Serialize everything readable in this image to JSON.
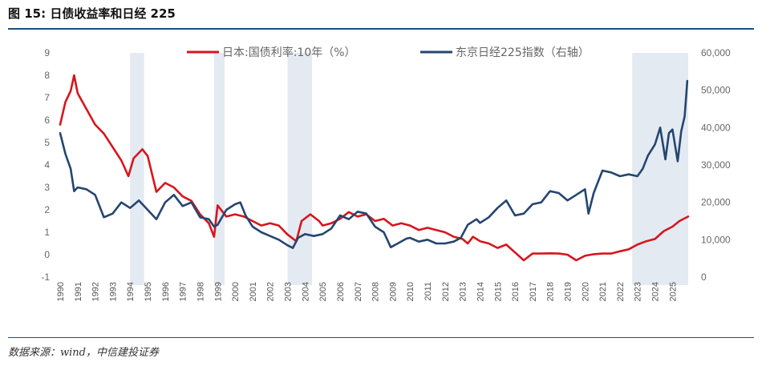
{
  "header": {
    "title": "图 15:  日债收益率和日经 225"
  },
  "footer": {
    "source": "数据来源：wind，中信建投证券"
  },
  "colors": {
    "jgb": "#d7151c",
    "nikkei": "#24466f",
    "band": "#e4eaf2",
    "rule": "#1f4e79"
  },
  "chart_data": {
    "type": "line",
    "title": "日债收益率和日经 225",
    "x_range": [
      1990,
      2025.9
    ],
    "x_ticks": [
      1990,
      1991,
      1992,
      1993,
      1994,
      1995,
      1996,
      1997,
      1998,
      1999,
      2000,
      2001,
      2002,
      2003,
      2004,
      2005,
      2006,
      2007,
      2008,
      2009,
      2010,
      2011,
      2012,
      2013,
      2014,
      2015,
      2016,
      2017,
      2018,
      2019,
      2020,
      2021,
      2022,
      2023,
      2024,
      2025
    ],
    "y_left": {
      "label": "%",
      "min": -1,
      "max": 9,
      "ticks": [
        -1,
        0,
        1,
        2,
        3,
        4,
        5,
        6,
        7,
        8,
        9
      ]
    },
    "y_right": {
      "min": 0,
      "max": 60000,
      "ticks": [
        0,
        10000,
        20000,
        30000,
        40000,
        50000,
        60000
      ],
      "tick_labels": [
        "0",
        "10,000",
        "20,000",
        "30,000",
        "40,000",
        "50,000",
        "60,000"
      ]
    },
    "shaded_periods": [
      [
        1994.0,
        1994.8
      ],
      [
        1998.8,
        1999.4
      ],
      [
        2003.0,
        2004.4
      ],
      [
        2022.7,
        2025.9
      ]
    ],
    "legend": {
      "position": "top-center"
    },
    "series": [
      {
        "name": "日本:国债利率:10年（%）",
        "axis": "left",
        "color": "#d7151c",
        "points": [
          [
            1990.0,
            5.8
          ],
          [
            1990.3,
            6.8
          ],
          [
            1990.6,
            7.3
          ],
          [
            1990.8,
            8.0
          ],
          [
            1991.0,
            7.2
          ],
          [
            1991.5,
            6.5
          ],
          [
            1992.0,
            5.8
          ],
          [
            1992.5,
            5.4
          ],
          [
            1993.0,
            4.8
          ],
          [
            1993.5,
            4.2
          ],
          [
            1993.9,
            3.5
          ],
          [
            1994.2,
            4.3
          ],
          [
            1994.7,
            4.7
          ],
          [
            1995.0,
            4.4
          ],
          [
            1995.5,
            2.8
          ],
          [
            1996.0,
            3.2
          ],
          [
            1996.5,
            3.0
          ],
          [
            1997.0,
            2.6
          ],
          [
            1997.5,
            2.4
          ],
          [
            1998.0,
            1.8
          ],
          [
            1998.5,
            1.4
          ],
          [
            1998.8,
            0.8
          ],
          [
            1999.0,
            2.2
          ],
          [
            1999.5,
            1.7
          ],
          [
            2000.0,
            1.8
          ],
          [
            2000.5,
            1.7
          ],
          [
            2001.0,
            1.5
          ],
          [
            2001.5,
            1.3
          ],
          [
            2002.0,
            1.4
          ],
          [
            2002.5,
            1.3
          ],
          [
            2003.0,
            0.9
          ],
          [
            2003.5,
            0.6
          ],
          [
            2003.8,
            1.5
          ],
          [
            2004.3,
            1.8
          ],
          [
            2004.8,
            1.5
          ],
          [
            2005.0,
            1.3
          ],
          [
            2005.5,
            1.4
          ],
          [
            2006.0,
            1.6
          ],
          [
            2006.5,
            1.9
          ],
          [
            2007.0,
            1.7
          ],
          [
            2007.5,
            1.8
          ],
          [
            2008.0,
            1.5
          ],
          [
            2008.5,
            1.6
          ],
          [
            2009.0,
            1.3
          ],
          [
            2009.5,
            1.4
          ],
          [
            2010.0,
            1.3
          ],
          [
            2010.5,
            1.1
          ],
          [
            2011.0,
            1.2
          ],
          [
            2011.5,
            1.1
          ],
          [
            2012.0,
            1.0
          ],
          [
            2012.5,
            0.8
          ],
          [
            2013.0,
            0.7
          ],
          [
            2013.3,
            0.5
          ],
          [
            2013.6,
            0.8
          ],
          [
            2014.0,
            0.6
          ],
          [
            2014.5,
            0.5
          ],
          [
            2015.0,
            0.3
          ],
          [
            2015.5,
            0.45
          ],
          [
            2016.0,
            0.1
          ],
          [
            2016.5,
            -0.25
          ],
          [
            2017.0,
            0.05
          ],
          [
            2017.5,
            0.05
          ],
          [
            2018.0,
            0.06
          ],
          [
            2018.5,
            0.05
          ],
          [
            2019.0,
            0.0
          ],
          [
            2019.5,
            -0.25
          ],
          [
            2020.0,
            -0.05
          ],
          [
            2020.5,
            0.02
          ],
          [
            2021.0,
            0.05
          ],
          [
            2021.5,
            0.05
          ],
          [
            2022.0,
            0.15
          ],
          [
            2022.5,
            0.24
          ],
          [
            2023.0,
            0.45
          ],
          [
            2023.5,
            0.6
          ],
          [
            2024.0,
            0.7
          ],
          [
            2024.5,
            1.05
          ],
          [
            2025.0,
            1.25
          ],
          [
            2025.4,
            1.5
          ],
          [
            2025.9,
            1.7
          ]
        ]
      },
      {
        "name": "东京日经225指数（右轴）",
        "axis": "right",
        "color": "#24466f",
        "points": [
          [
            1990.0,
            38500
          ],
          [
            1990.3,
            33000
          ],
          [
            1990.6,
            29000
          ],
          [
            1990.8,
            23000
          ],
          [
            1991.0,
            24000
          ],
          [
            1991.5,
            23500
          ],
          [
            1992.0,
            22000
          ],
          [
            1992.5,
            16000
          ],
          [
            1993.0,
            17000
          ],
          [
            1993.5,
            20000
          ],
          [
            1994.0,
            18500
          ],
          [
            1994.5,
            20500
          ],
          [
            1995.0,
            18000
          ],
          [
            1995.5,
            15500
          ],
          [
            1996.0,
            20000
          ],
          [
            1996.5,
            22000
          ],
          [
            1997.0,
            19000
          ],
          [
            1997.5,
            20000
          ],
          [
            1998.0,
            16000
          ],
          [
            1998.5,
            15500
          ],
          [
            1998.8,
            13500
          ],
          [
            1999.0,
            14000
          ],
          [
            1999.5,
            18000
          ],
          [
            2000.0,
            19500
          ],
          [
            2000.3,
            20000
          ],
          [
            2000.6,
            16500
          ],
          [
            2001.0,
            13500
          ],
          [
            2001.5,
            12000
          ],
          [
            2002.0,
            11000
          ],
          [
            2002.5,
            10000
          ],
          [
            2003.0,
            8500
          ],
          [
            2003.3,
            7800
          ],
          [
            2003.6,
            10500
          ],
          [
            2004.0,
            11500
          ],
          [
            2004.5,
            11000
          ],
          [
            2005.0,
            11500
          ],
          [
            2005.5,
            13000
          ],
          [
            2006.0,
            16500
          ],
          [
            2006.5,
            15500
          ],
          [
            2007.0,
            17500
          ],
          [
            2007.5,
            17000
          ],
          [
            2008.0,
            13500
          ],
          [
            2008.5,
            12000
          ],
          [
            2008.9,
            8000
          ],
          [
            2009.3,
            9000
          ],
          [
            2009.8,
            10300
          ],
          [
            2010.0,
            10500
          ],
          [
            2010.5,
            9500
          ],
          [
            2011.0,
            10000
          ],
          [
            2011.5,
            9000
          ],
          [
            2012.0,
            9000
          ],
          [
            2012.5,
            9500
          ],
          [
            2012.9,
            10500
          ],
          [
            2013.3,
            14000
          ],
          [
            2013.8,
            15500
          ],
          [
            2014.0,
            14500
          ],
          [
            2014.5,
            16000
          ],
          [
            2015.0,
            18500
          ],
          [
            2015.5,
            20500
          ],
          [
            2016.0,
            16500
          ],
          [
            2016.5,
            17000
          ],
          [
            2017.0,
            19500
          ],
          [
            2017.5,
            20000
          ],
          [
            2018.0,
            23000
          ],
          [
            2018.5,
            22500
          ],
          [
            2019.0,
            20500
          ],
          [
            2019.5,
            22000
          ],
          [
            2020.0,
            23500
          ],
          [
            2020.2,
            17000
          ],
          [
            2020.5,
            22500
          ],
          [
            2021.0,
            28500
          ],
          [
            2021.5,
            28000
          ],
          [
            2022.0,
            27000
          ],
          [
            2022.5,
            27500
          ],
          [
            2023.0,
            27000
          ],
          [
            2023.3,
            29000
          ],
          [
            2023.6,
            32500
          ],
          [
            2024.0,
            35500
          ],
          [
            2024.3,
            40000
          ],
          [
            2024.6,
            31500
          ],
          [
            2024.8,
            38500
          ],
          [
            2025.0,
            39500
          ],
          [
            2025.3,
            31000
          ],
          [
            2025.5,
            39000
          ],
          [
            2025.7,
            43000
          ],
          [
            2025.85,
            52500
          ]
        ]
      }
    ]
  }
}
